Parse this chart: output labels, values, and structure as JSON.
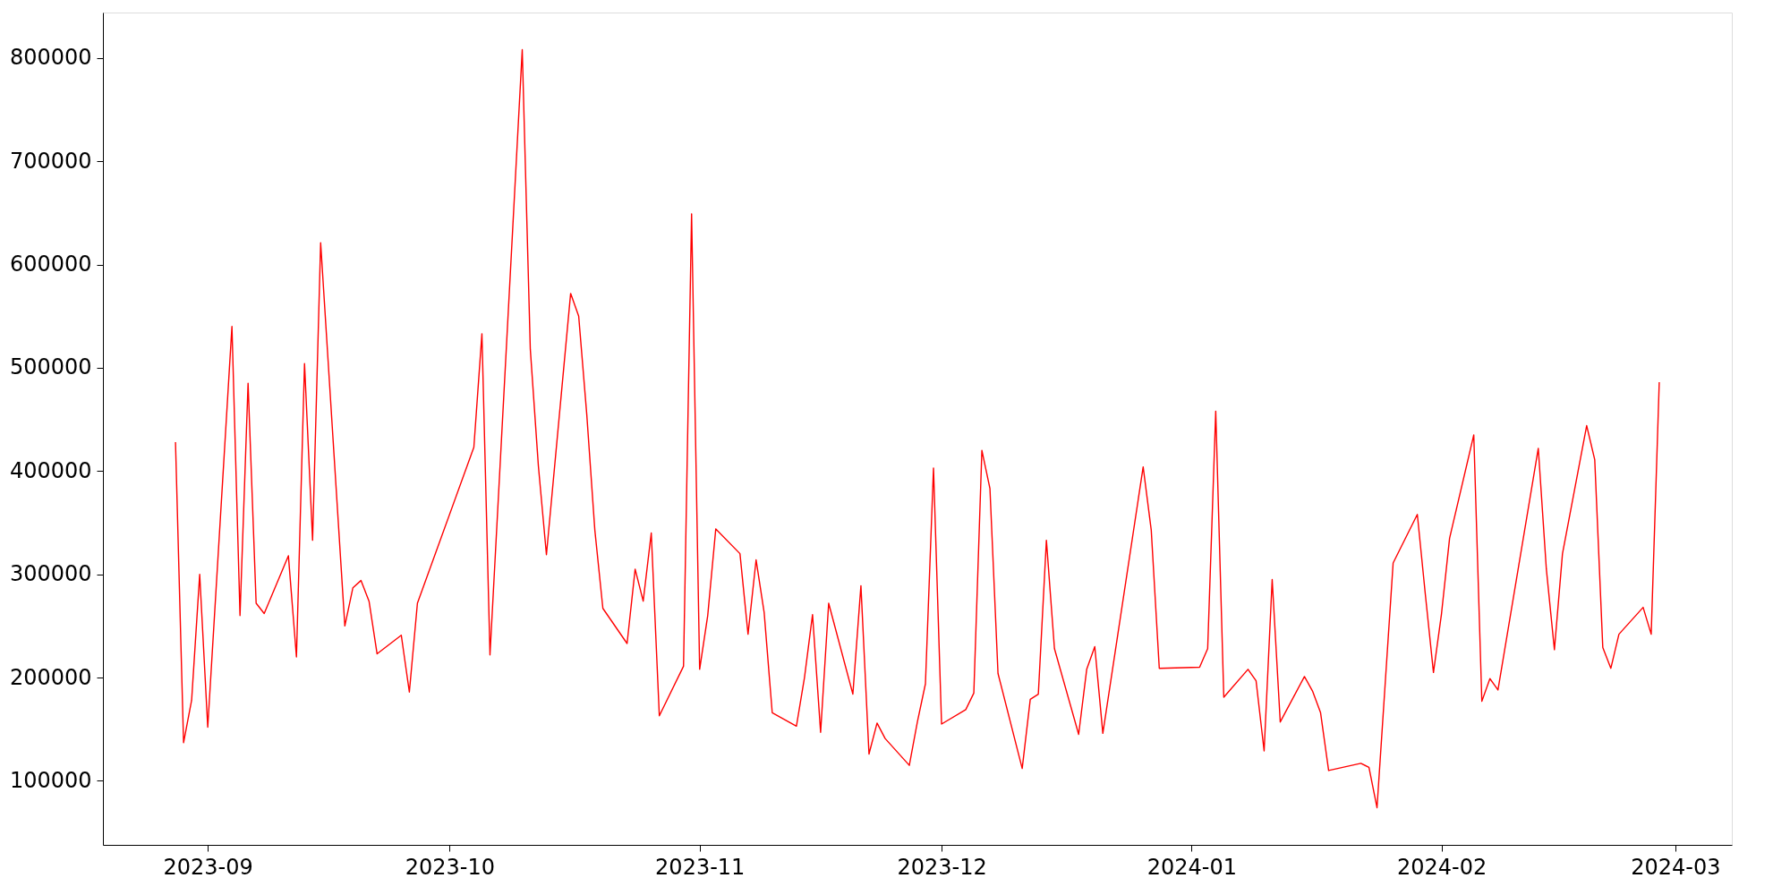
{
  "chart_data": {
    "type": "line",
    "x": [
      "2023-08-28",
      "2023-08-29",
      "2023-08-30",
      "2023-08-31",
      "2023-09-01",
      "2023-09-04",
      "2023-09-05",
      "2023-09-06",
      "2023-09-07",
      "2023-09-08",
      "2023-09-11",
      "2023-09-12",
      "2023-09-13",
      "2023-09-14",
      "2023-09-15",
      "2023-09-18",
      "2023-09-19",
      "2023-09-20",
      "2023-09-21",
      "2023-09-22",
      "2023-09-25",
      "2023-09-26",
      "2023-09-27",
      "2023-10-04",
      "2023-10-05",
      "2023-10-06",
      "2023-10-10",
      "2023-10-11",
      "2023-10-12",
      "2023-10-13",
      "2023-10-16",
      "2023-10-17",
      "2023-10-18",
      "2023-10-19",
      "2023-10-20",
      "2023-10-23",
      "2023-10-24",
      "2023-10-25",
      "2023-10-26",
      "2023-10-27",
      "2023-10-30",
      "2023-10-31",
      "2023-11-01",
      "2023-11-02",
      "2023-11-03",
      "2023-11-06",
      "2023-11-07",
      "2023-11-08",
      "2023-11-09",
      "2023-11-10",
      "2023-11-13",
      "2023-11-14",
      "2023-11-15",
      "2023-11-16",
      "2023-11-17",
      "2023-11-20",
      "2023-11-21",
      "2023-11-22",
      "2023-11-23",
      "2023-11-24",
      "2023-11-27",
      "2023-11-28",
      "2023-11-29",
      "2023-11-30",
      "2023-12-01",
      "2023-12-04",
      "2023-12-05",
      "2023-12-06",
      "2023-12-07",
      "2023-12-08",
      "2023-12-11",
      "2023-12-12",
      "2023-12-13",
      "2023-12-14",
      "2023-12-15",
      "2023-12-18",
      "2023-12-19",
      "2023-12-20",
      "2023-12-21",
      "2023-12-26",
      "2023-12-27",
      "2023-12-28",
      "2024-01-02",
      "2024-01-03",
      "2024-01-04",
      "2024-01-05",
      "2024-01-08",
      "2024-01-09",
      "2024-01-10",
      "2024-01-11",
      "2024-01-12",
      "2024-01-15",
      "2024-01-16",
      "2024-01-17",
      "2024-01-18",
      "2024-01-22",
      "2024-01-23",
      "2024-01-24",
      "2024-01-26",
      "2024-01-29",
      "2024-01-30",
      "2024-01-31",
      "2024-02-01",
      "2024-02-02",
      "2024-02-05",
      "2024-02-06",
      "2024-02-07",
      "2024-02-08",
      "2024-02-13",
      "2024-02-14",
      "2024-02-15",
      "2024-02-16",
      "2024-02-19",
      "2024-02-20",
      "2024-02-21",
      "2024-02-22",
      "2024-02-23",
      "2024-02-26",
      "2024-02-27",
      "2024-02-28"
    ],
    "series": [
      {
        "color": "#ff0000",
        "values": [
          428000,
          137000,
          178000,
          300000,
          152000,
          540000,
          260000,
          485000,
          272000,
          262000,
          318000,
          220000,
          504000,
          333000,
          621000,
          250000,
          287000,
          294000,
          274000,
          223000,
          241000,
          186000,
          272000,
          423000,
          533000,
          222000,
          808000,
          518000,
          405000,
          319000,
          572000,
          550000,
          455000,
          343000,
          267000,
          233000,
          305000,
          274000,
          340000,
          163000,
          211000,
          649000,
          208000,
          260000,
          344000,
          320000,
          242000,
          314000,
          263000,
          166000,
          153000,
          200000,
          261000,
          147000,
          272000,
          184000,
          289000,
          126000,
          156000,
          141000,
          115000,
          157000,
          194000,
          403000,
          155000,
          169000,
          185000,
          420000,
          383000,
          204000,
          112000,
          179000,
          184000,
          333000,
          228000,
          145000,
          208000,
          230000,
          146000,
          404000,
          343000,
          209000,
          210000,
          228000,
          458000,
          181000,
          208000,
          197000,
          129000,
          295000,
          157000,
          201000,
          187000,
          166000,
          110000,
          117000,
          113000,
          74000,
          311000,
          358000,
          280000,
          205000,
          262000,
          335000,
          435000,
          177000,
          199000,
          188000,
          422000,
          305000,
          227000,
          320000,
          444000,
          411000,
          229000,
          209000,
          242000,
          268000,
          242000,
          486000
        ]
      }
    ],
    "xlim": [
      "2023-08-19",
      "2024-03-08"
    ],
    "xticks": [
      "2023-09",
      "2023-10",
      "2023-11",
      "2023-12",
      "2024-01",
      "2024-02",
      "2024-03"
    ],
    "ylim": [
      38000,
      844000
    ],
    "yticks": [
      100000,
      200000,
      300000,
      400000,
      500000,
      600000,
      700000,
      800000
    ],
    "grid": false,
    "line_style": "solid",
    "marker": "none"
  }
}
